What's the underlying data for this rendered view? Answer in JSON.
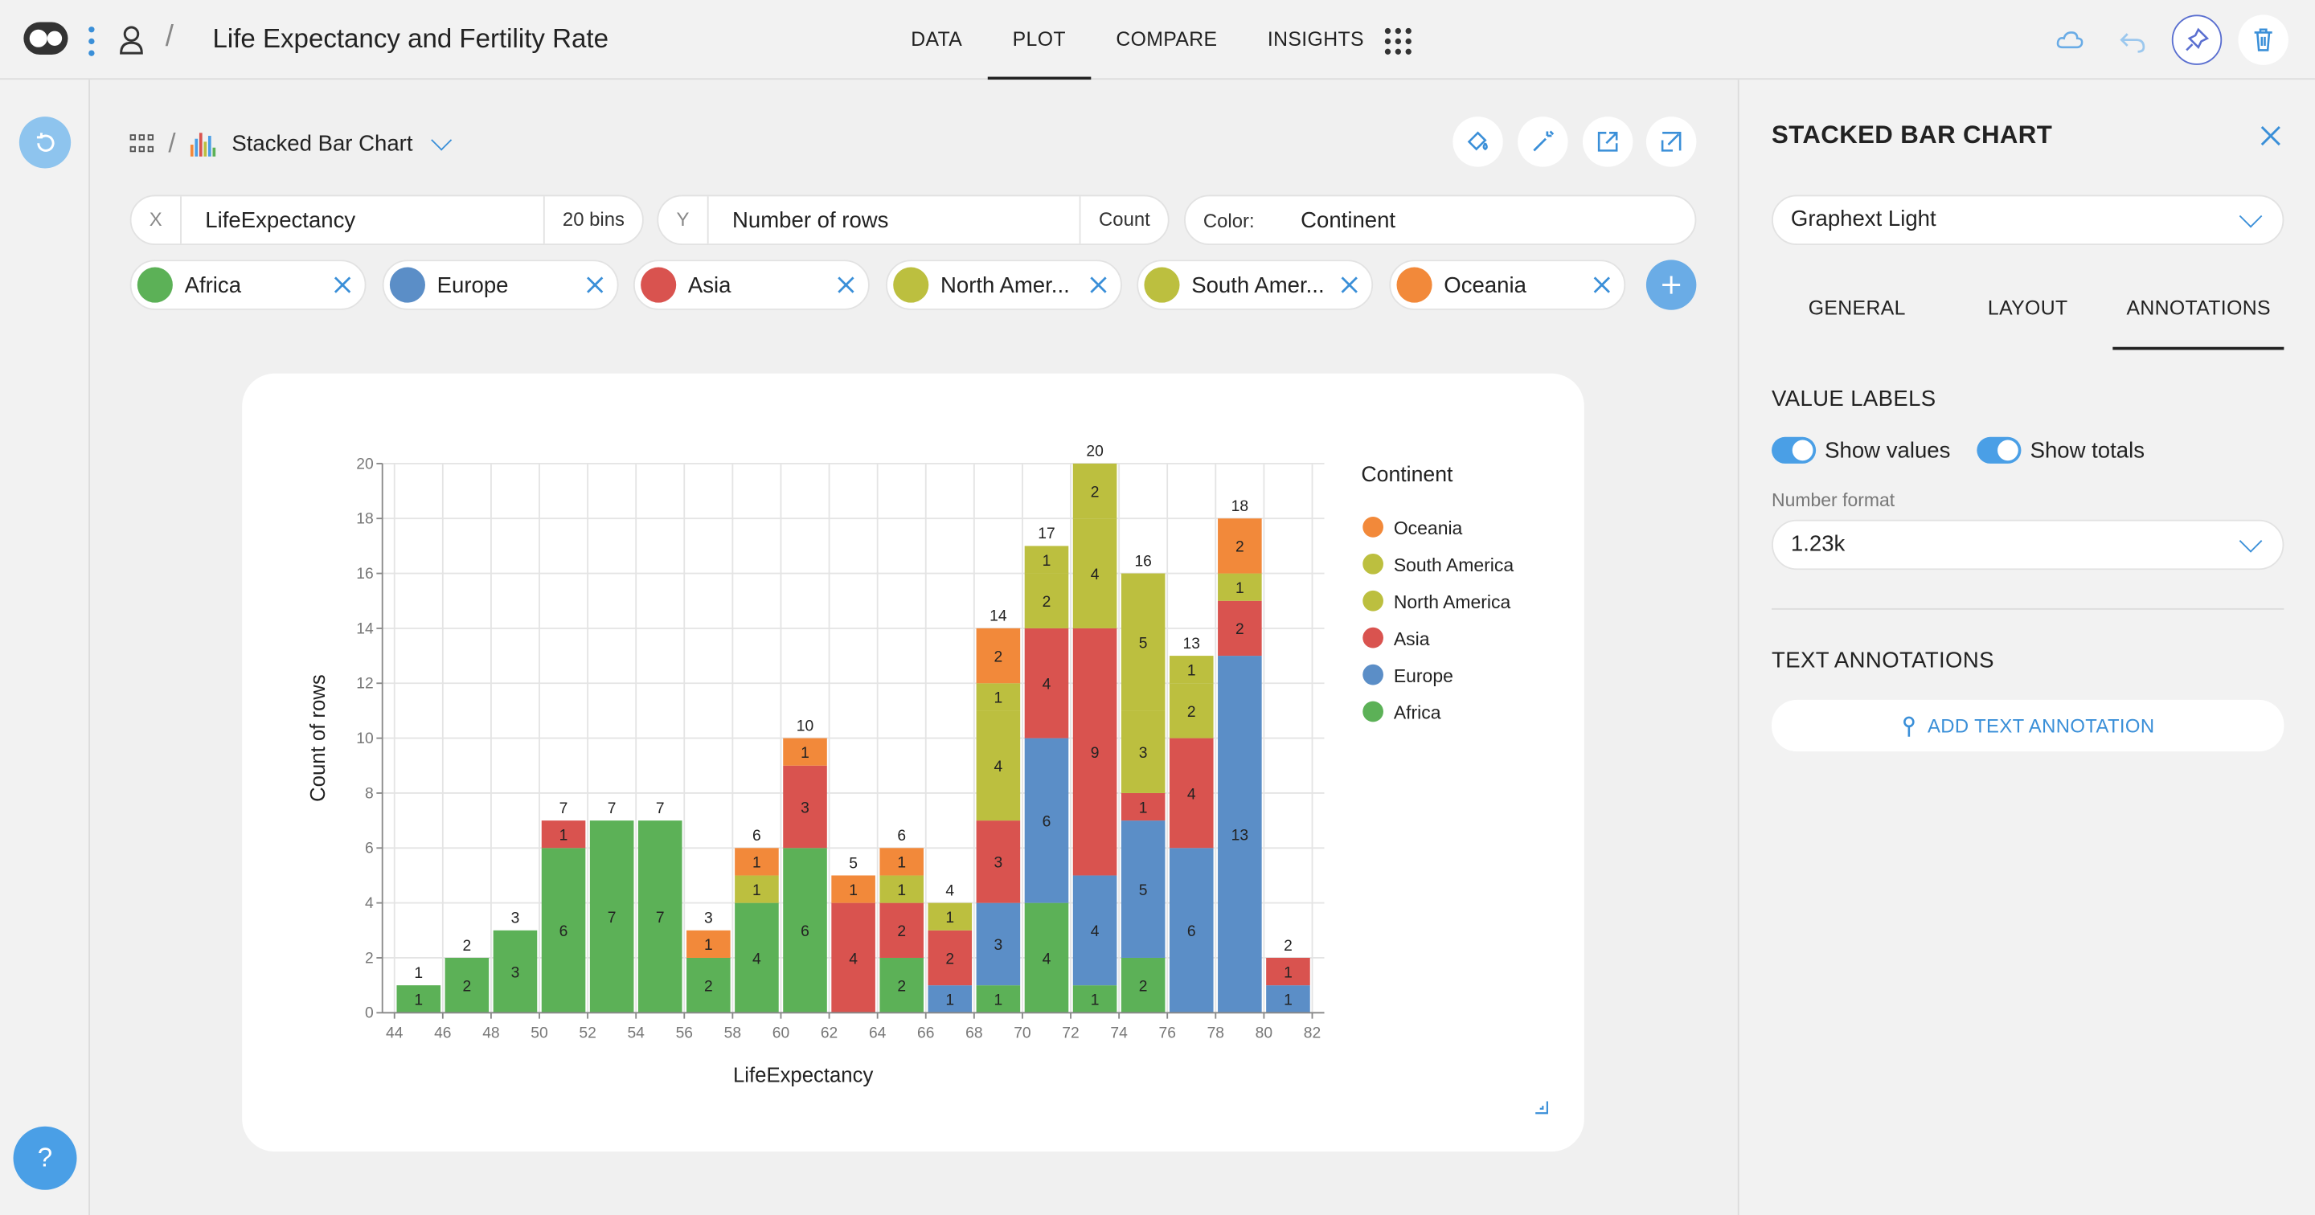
{
  "header": {
    "title": "Life Expectancy and Fertility Rate",
    "tabs": [
      {
        "label": "DATA"
      },
      {
        "label": "PLOT",
        "active": true
      },
      {
        "label": "COMPARE"
      },
      {
        "label": "INSIGHTS"
      }
    ],
    "icons": [
      "logo-icon",
      "kebab-icon",
      "user-icon",
      "apps-icon",
      "cloud-icon",
      "undo-icon",
      "pin-icon",
      "trash-icon"
    ]
  },
  "rail": {
    "help_label": "?"
  },
  "toolbar": {
    "chart_type": "Stacked Bar Chart"
  },
  "encoding": {
    "x": {
      "axis": "X",
      "field": "LifeExpectancy",
      "agg": "20 bins"
    },
    "y": {
      "axis": "Y",
      "field": "Number of rows",
      "agg": "Count"
    },
    "color": {
      "label": "Color:",
      "field": "Continent"
    }
  },
  "filters": [
    {
      "label": "Africa",
      "color": "#5cb157"
    },
    {
      "label": "Europe",
      "color": "#5b8ec7"
    },
    {
      "label": "Asia",
      "color": "#d9534f"
    },
    {
      "label": "North Amer...",
      "color": "#bcbf3f"
    },
    {
      "label": "South Amer...",
      "color": "#bcbf3f"
    },
    {
      "label": "Oceania",
      "color": "#f2893a"
    }
  ],
  "colors": {
    "Africa": "#5cb157",
    "Europe": "#5b8ec7",
    "Asia": "#d9534f",
    "North America": "#bcbf3f",
    "South America": "#bcbf3f",
    "Oceania": "#f2893a",
    "accent": "#3a8fd8"
  },
  "chart_data": {
    "type": "bar",
    "stacked": true,
    "xlabel": "LifeExpectancy",
    "ylabel": "Count of rows",
    "ylim": [
      0,
      20
    ],
    "yticks": [
      0,
      2,
      4,
      6,
      8,
      10,
      12,
      14,
      16,
      18,
      20
    ],
    "xlim": [
      43.5,
      82.5
    ],
    "xticks": [
      44,
      46,
      48,
      50,
      52,
      54,
      56,
      58,
      60,
      62,
      64,
      66,
      68,
      70,
      72,
      74,
      76,
      78,
      80,
      82
    ],
    "legend_title": "Continent",
    "legend_position": "right",
    "legend": [
      "Oceania",
      "South America",
      "North America",
      "Asia",
      "Europe",
      "Africa"
    ],
    "series_order": [
      "Africa",
      "Europe",
      "Asia",
      "North America",
      "South America",
      "Oceania"
    ],
    "bins": [
      {
        "x0": 44,
        "x1": 46,
        "total": 1,
        "stack": [
          {
            "s": "Africa",
            "v": 1
          }
        ]
      },
      {
        "x0": 46,
        "x1": 48,
        "total": 2,
        "stack": [
          {
            "s": "Africa",
            "v": 2
          }
        ]
      },
      {
        "x0": 48,
        "x1": 50,
        "total": 3,
        "stack": [
          {
            "s": "Africa",
            "v": 3
          }
        ]
      },
      {
        "x0": 50,
        "x1": 52,
        "total": 7,
        "stack": [
          {
            "s": "Africa",
            "v": 6
          },
          {
            "s": "Asia",
            "v": 1
          }
        ]
      },
      {
        "x0": 52,
        "x1": 54,
        "total": 7,
        "stack": [
          {
            "s": "Africa",
            "v": 7
          }
        ]
      },
      {
        "x0": 54,
        "x1": 56,
        "total": 7,
        "stack": [
          {
            "s": "Africa",
            "v": 7
          }
        ]
      },
      {
        "x0": 56,
        "x1": 58,
        "total": 3,
        "stack": [
          {
            "s": "Africa",
            "v": 2
          },
          {
            "s": "Oceania",
            "v": 1
          }
        ]
      },
      {
        "x0": 58,
        "x1": 60,
        "total": 6,
        "stack": [
          {
            "s": "Africa",
            "v": 4
          },
          {
            "s": "North America",
            "v": 1
          },
          {
            "s": "Oceania",
            "v": 1
          }
        ]
      },
      {
        "x0": 60,
        "x1": 62,
        "total": 10,
        "stack": [
          {
            "s": "Africa",
            "v": 6
          },
          {
            "s": "Asia",
            "v": 3
          },
          {
            "s": "Oceania",
            "v": 1
          }
        ]
      },
      {
        "x0": 62,
        "x1": 64,
        "total": 5,
        "stack": [
          {
            "s": "Asia",
            "v": 4
          },
          {
            "s": "Oceania",
            "v": 1
          }
        ]
      },
      {
        "x0": 64,
        "x1": 66,
        "total": 6,
        "stack": [
          {
            "s": "Africa",
            "v": 2
          },
          {
            "s": "Asia",
            "v": 2
          },
          {
            "s": "North America",
            "v": 1
          },
          {
            "s": "Oceania",
            "v": 1
          }
        ]
      },
      {
        "x0": 66,
        "x1": 68,
        "total": 4,
        "stack": [
          {
            "s": "Europe",
            "v": 1
          },
          {
            "s": "Asia",
            "v": 2
          },
          {
            "s": "North America",
            "v": 1
          }
        ]
      },
      {
        "x0": 68,
        "x1": 70,
        "total": 14,
        "stack": [
          {
            "s": "Africa",
            "v": 1
          },
          {
            "s": "Europe",
            "v": 3
          },
          {
            "s": "Asia",
            "v": 3
          },
          {
            "s": "North America",
            "v": 4
          },
          {
            "s": "South America",
            "v": 1
          },
          {
            "s": "Oceania",
            "v": 2
          }
        ]
      },
      {
        "x0": 70,
        "x1": 72,
        "total": 17,
        "stack": [
          {
            "s": "Africa",
            "v": 4
          },
          {
            "s": "Europe",
            "v": 6
          },
          {
            "s": "Asia",
            "v": 4
          },
          {
            "s": "North America",
            "v": 2
          },
          {
            "s": "South America",
            "v": 1
          }
        ]
      },
      {
        "x0": 72,
        "x1": 74,
        "total": 20,
        "stack": [
          {
            "s": "Africa",
            "v": 1
          },
          {
            "s": "Europe",
            "v": 4
          },
          {
            "s": "Asia",
            "v": 9
          },
          {
            "s": "North America",
            "v": 4
          },
          {
            "s": "South America",
            "v": 2
          }
        ]
      },
      {
        "x0": 74,
        "x1": 76,
        "total": 16,
        "stack": [
          {
            "s": "Africa",
            "v": 2
          },
          {
            "s": "Europe",
            "v": 5
          },
          {
            "s": "Asia",
            "v": 1
          },
          {
            "s": "North America",
            "v": 3
          },
          {
            "s": "South America",
            "v": 5
          }
        ]
      },
      {
        "x0": 76,
        "x1": 78,
        "total": 13,
        "stack": [
          {
            "s": "Europe",
            "v": 6
          },
          {
            "s": "Asia",
            "v": 4
          },
          {
            "s": "North America",
            "v": 2
          },
          {
            "s": "South America",
            "v": 1
          }
        ]
      },
      {
        "x0": 78,
        "x1": 80,
        "total": 18,
        "stack": [
          {
            "s": "Europe",
            "v": 13
          },
          {
            "s": "Asia",
            "v": 2
          },
          {
            "s": "North America",
            "v": 1
          },
          {
            "s": "Oceania",
            "v": 2
          }
        ]
      },
      {
        "x0": 80,
        "x1": 82,
        "total": 2,
        "stack": [
          {
            "s": "Europe",
            "v": 1
          },
          {
            "s": "Asia",
            "v": 1
          }
        ]
      }
    ]
  },
  "panel": {
    "title": "STACKED BAR CHART",
    "theme": "Graphext Light",
    "tabs": [
      {
        "label": "GENERAL"
      },
      {
        "label": "LAYOUT"
      },
      {
        "label": "ANNOTATIONS",
        "active": true
      }
    ],
    "value_labels_heading": "VALUE LABELS",
    "show_values_label": "Show values",
    "show_values": true,
    "show_totals_label": "Show totals",
    "show_totals": true,
    "number_format_label": "Number format",
    "number_format": "1.23k",
    "text_annotations_heading": "TEXT ANNOTATIONS",
    "add_annotation_label": "ADD TEXT ANNOTATION"
  }
}
